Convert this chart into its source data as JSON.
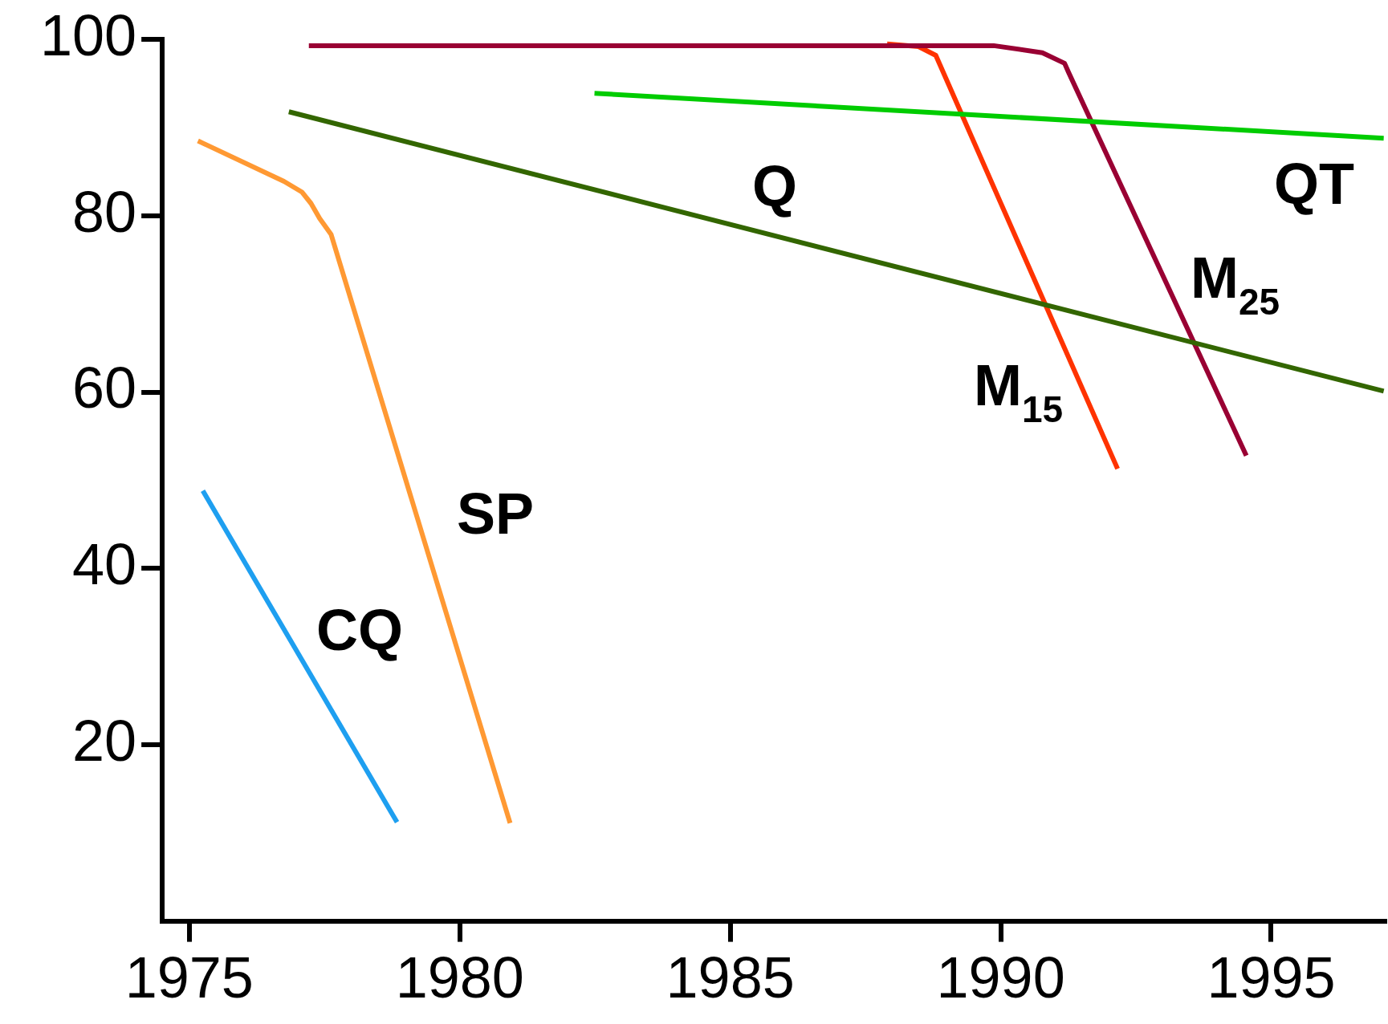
{
  "chart_data": {
    "type": "line",
    "xlim": [
      1974.5,
      1997.1
    ],
    "xticks": [
      1975,
      1980,
      1985,
      1990,
      1995
    ],
    "ylim": [
      0,
      100
    ],
    "yticks": [
      20,
      40,
      60,
      80,
      100
    ],
    "grid": false,
    "legend": false,
    "marker": "none",
    "line_style": "solid",
    "series": [
      {
        "name": "CQ",
        "color": "#1e9ff0",
        "x": [
          1975.25,
          1978.84
        ],
        "values": [
          48.8,
          11.2
        ]
      },
      {
        "name": "SP",
        "color": "#ff9933",
        "x": [
          1975.16,
          1976.75,
          1977.08,
          1977.25,
          1977.41,
          1977.62,
          1980.93
        ],
        "values": [
          88.5,
          83.9,
          82.7,
          81.4,
          79.7,
          77.9,
          11.1
        ]
      },
      {
        "name": "Q",
        "color": "#336600",
        "x": [
          1976.84,
          1997.08
        ],
        "values": [
          91.8,
          60.1
        ]
      },
      {
        "name": "QT",
        "color": "#00cc00",
        "x": [
          1982.49,
          1997.08
        ],
        "values": [
          93.9,
          88.8
        ]
      },
      {
        "name": "M$_{25}$",
        "color": "#990033",
        "x": [
          1977.21,
          1989.87,
          1990.77,
          1991.18,
          1991.26,
          1994.54
        ],
        "values": [
          99.3,
          99.3,
          98.5,
          97.3,
          96.2,
          52.8
        ]
      },
      {
        "name": "M$_{15}$",
        "color": "#ff3300",
        "x": [
          1987.9,
          1988.48,
          1988.8,
          1992.16
        ],
        "values": [
          99.5,
          99.2,
          98.2,
          51.3
        ]
      }
    ]
  }
}
